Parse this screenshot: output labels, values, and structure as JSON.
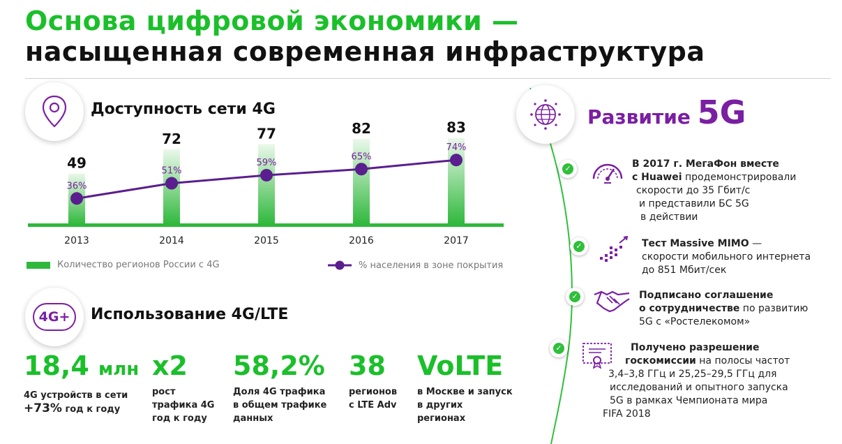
{
  "header": {
    "title_line1": "Основа цифровой экономики —",
    "title_line2": "насыщенная современная инфраструктура"
  },
  "section_4g": {
    "title": "Доступность сети 4G",
    "icon": "location-pin-icon"
  },
  "chart_data": {
    "type": "bar",
    "categories": [
      "2013",
      "2014",
      "2015",
      "2016",
      "2017"
    ],
    "series": [
      {
        "name": "Количество регионов России с 4G",
        "type": "bar",
        "values": [
          49,
          72,
          77,
          82,
          83
        ],
        "labels": [
          "49",
          "72",
          "77",
          "82",
          "83"
        ],
        "color": "#2fb83c"
      },
      {
        "name": "% населения в зоне покрытия",
        "type": "line",
        "values": [
          36,
          51,
          59,
          65,
          74
        ],
        "labels": [
          "36%",
          "51%",
          "59%",
          "65%",
          "74%"
        ],
        "color": "#5a1e8e"
      }
    ],
    "legend_position": "bottom",
    "grid": false
  },
  "legend": {
    "bar_label": "Количество регионов России с 4G",
    "line_label": "% населения в зоне покрытия"
  },
  "section_lte": {
    "title": "Использование 4G/LTE",
    "icon_text": "4G+"
  },
  "stats": [
    {
      "value": "18,4",
      "unit": "млн",
      "label_line1": "4G устройств в сети",
      "label_bold": "+73%",
      "label_tail": " год к году"
    },
    {
      "value": "x2",
      "label_line1": "рост",
      "label_line2": "трафика 4G",
      "label_line3": "год к году"
    },
    {
      "value": "58,2%",
      "label_line1": "Доля 4G  трафика",
      "label_line2": "в общем трафике",
      "label_line3": "данных"
    },
    {
      "value": "38",
      "label_line1": "регионов",
      "label_line2": "с LTE Adv"
    },
    {
      "value": "VoLTE",
      "label_line1": "в Москве и запуск",
      "label_line2": "в других",
      "label_line3": "регионах"
    }
  ],
  "section_5g": {
    "title_prefix": "Развитие ",
    "title_big": "5G",
    "icon": "globe-network-icon",
    "items": [
      {
        "icon": "speedometer-icon",
        "lines": [
          {
            "bold": "В 2017 г. МегаФон вместе",
            "rest": ""
          },
          {
            "bold": "с Huawei",
            "rest": " продемонстрировали"
          },
          {
            "bold": "",
            "rest": "скорости до 35 Гбит/с"
          },
          {
            "bold": "",
            "rest": "и представили БС 5G"
          },
          {
            "bold": "",
            "rest": "в действии"
          }
        ]
      },
      {
        "icon": "mimo-antenna-icon",
        "lines": [
          {
            "bold": "Тест Massive MIMO",
            "rest": " —"
          },
          {
            "bold": "",
            "rest": "скорости мобильного интернета"
          },
          {
            "bold": "",
            "rest": "до 851 Мбит/сек"
          }
        ]
      },
      {
        "icon": "handshake-icon",
        "lines": [
          {
            "bold": "Подписано соглашение",
            "rest": ""
          },
          {
            "bold": "о сотрудничестве",
            "rest": " по развитию"
          },
          {
            "bold": "",
            "rest": "5G с «Ростелекомом»"
          }
        ]
      },
      {
        "icon": "certificate-icon",
        "lines": [
          {
            "bold": "Получено разрешение",
            "rest": ""
          },
          {
            "bold": "госкомиссии",
            "rest": " на полосы частот"
          },
          {
            "bold": "",
            "rest": "3,4–3,8 ГГц и 25,25–29,5 ГГц для"
          },
          {
            "bold": "",
            "rest": "исследований и опытного запуска"
          },
          {
            "bold": "",
            "rest": "5G в рамках Чемпионата мира"
          },
          {
            "bold": "",
            "rest": "FIFA 2018"
          }
        ]
      }
    ]
  },
  "check_icon": "check-icon",
  "colors": {
    "green": "#1bbf2a",
    "bar_green": "#2fb83c",
    "purple": "#7a1fa2",
    "line_purple": "#5a1e8e"
  }
}
